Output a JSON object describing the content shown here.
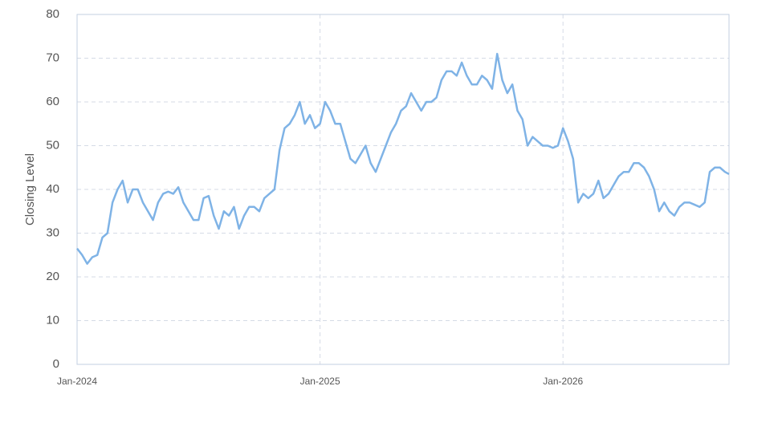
{
  "chart_data": {
    "type": "line",
    "y_label": "Closing Level",
    "x": [
      0,
      0.25,
      0.5,
      0.75,
      1,
      1.25,
      1.5,
      1.75,
      2,
      2.25,
      2.5,
      2.75,
      3,
      3.25,
      3.5,
      3.75,
      4,
      4.25,
      4.5,
      4.75,
      5,
      5.25,
      5.5,
      5.75,
      6,
      6.25,
      6.5,
      6.75,
      7,
      7.25,
      7.5,
      7.75,
      8,
      8.25,
      8.5,
      8.75,
      9,
      9.25,
      9.5,
      9.75,
      10,
      10.25,
      10.5,
      10.75,
      11,
      11.25,
      11.5,
      11.75,
      12,
      12.25,
      12.5,
      12.75,
      13,
      13.25,
      13.5,
      13.75,
      14,
      14.25,
      14.5,
      14.75,
      15,
      15.25,
      15.5,
      15.75,
      16,
      16.25,
      16.5,
      16.75,
      17,
      17.25,
      17.5,
      17.75,
      18,
      18.25,
      18.5,
      18.75,
      19,
      19.25,
      19.5,
      19.75,
      20,
      20.25,
      20.5,
      20.75,
      21,
      21.25,
      21.5,
      21.75,
      22,
      22.25,
      22.5,
      22.75,
      23,
      23.25,
      23.5,
      23.75,
      24,
      24.25,
      24.5,
      24.75,
      25,
      25.25,
      25.5,
      25.75,
      26,
      26.25,
      26.5,
      26.75,
      27,
      27.25,
      27.5,
      27.75,
      28,
      28.25,
      28.5,
      28.75,
      29,
      29.25,
      29.5,
      29.75,
      30,
      30.25,
      30.5,
      30.75,
      31,
      31.25,
      31.5,
      31.75,
      32,
      32.2
    ],
    "series": [
      {
        "name": "Closing Level",
        "color": "#7fb3e6",
        "values": [
          26.5,
          25,
          23,
          24.5,
          25,
          29,
          30,
          37,
          40,
          42,
          37,
          40,
          40,
          37,
          35,
          33,
          37,
          39,
          39.5,
          39,
          40.5,
          37,
          35,
          33,
          33,
          38,
          38.5,
          34,
          31,
          35,
          34,
          36,
          31,
          34,
          36,
          36,
          35,
          38,
          39,
          40,
          49,
          54,
          55,
          57,
          60,
          55,
          57,
          54,
          55,
          60,
          58,
          55,
          55,
          51,
          47,
          46,
          48,
          50,
          46,
          44,
          47,
          50,
          53,
          55,
          58,
          59,
          62,
          60,
          58,
          60,
          60,
          61,
          65,
          67,
          67,
          66,
          69,
          66,
          64,
          64,
          66,
          65,
          63,
          71,
          65,
          62,
          64,
          58,
          56,
          50,
          52,
          51,
          50,
          50,
          49.5,
          50,
          54,
          51,
          47,
          37,
          39,
          38,
          39,
          42,
          38,
          39,
          41,
          43,
          44,
          44,
          46,
          46,
          45,
          43,
          40,
          35,
          37,
          35,
          34,
          36,
          37,
          37,
          36.5,
          36,
          37,
          44,
          45,
          45,
          44,
          43.5
        ]
      }
    ],
    "xlim": [
      0,
      32.2
    ],
    "xticks": [
      {
        "value": 0,
        "label": "Jan-2024"
      },
      {
        "value": 12,
        "label": "Jan-2025"
      },
      {
        "value": 24,
        "label": "Jan-2026"
      }
    ],
    "ylim": [
      0,
      80
    ],
    "yticks": [
      0,
      10,
      20,
      30,
      40,
      50,
      60,
      70,
      80
    ],
    "grid": true
  }
}
